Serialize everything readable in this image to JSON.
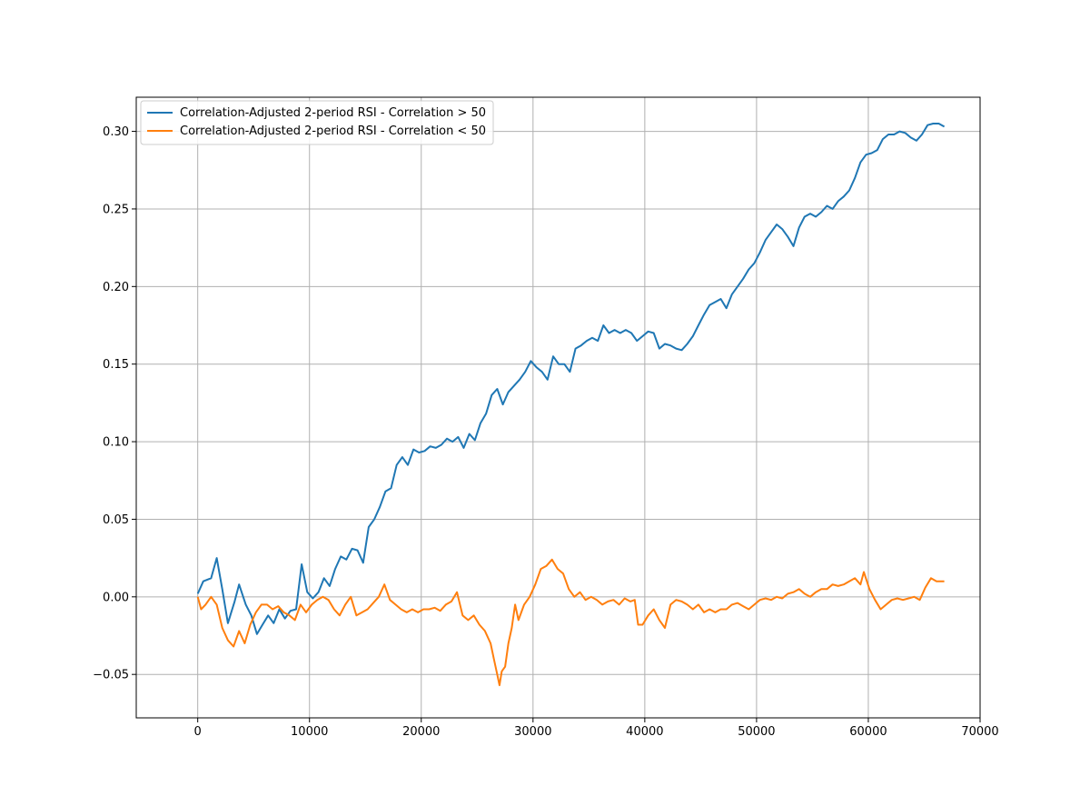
{
  "chart_data": {
    "type": "line",
    "title": "",
    "xlabel": "",
    "ylabel": "",
    "xlim": [
      -5500,
      70000
    ],
    "ylim": [
      -0.078,
      0.322
    ],
    "xticks": [
      0,
      10000,
      20000,
      30000,
      40000,
      50000,
      60000,
      70000
    ],
    "xtick_labels": [
      "0",
      "10000",
      "20000",
      "30000",
      "40000",
      "50000",
      "60000",
      "70000"
    ],
    "yticks": [
      -0.05,
      0.0,
      0.05,
      0.1,
      0.15,
      0.2,
      0.25,
      0.3
    ],
    "ytick_labels": [
      "−0.05",
      "0.00",
      "0.05",
      "0.10",
      "0.15",
      "0.20",
      "0.25",
      "0.30"
    ],
    "grid": true,
    "legend_position": "upper-left",
    "series": [
      {
        "name": "Correlation-Adjusted 2-period RSI - Correlation > 50",
        "color": "#1f77b4",
        "x": [
          0,
          500,
          1200,
          1700,
          2200,
          2700,
          3300,
          3700,
          4300,
          4800,
          5300,
          5800,
          6300,
          6800,
          7300,
          7800,
          8300,
          8800,
          9300,
          9800,
          10300,
          10800,
          11300,
          11800,
          12300,
          12800,
          13300,
          13800,
          14300,
          14800,
          15300,
          15800,
          16300,
          16800,
          17300,
          17800,
          18300,
          18800,
          19300,
          19800,
          20300,
          20800,
          21300,
          21800,
          22300,
          22800,
          23300,
          23800,
          24300,
          24800,
          25300,
          25800,
          26300,
          26800,
          27300,
          27800,
          28300,
          28800,
          29300,
          29800,
          30300,
          30800,
          31300,
          31800,
          32300,
          32800,
          33300,
          33800,
          34300,
          34800,
          35300,
          35800,
          36300,
          36800,
          37300,
          37800,
          38300,
          38800,
          39300,
          39800,
          40300,
          40800,
          41300,
          41800,
          42300,
          42800,
          43300,
          43800,
          44300,
          44800,
          45300,
          45800,
          46300,
          46800,
          47300,
          47800,
          48300,
          48800,
          49300,
          49800,
          50300,
          50800,
          51300,
          51800,
          52300,
          52800,
          53300,
          53800,
          54300,
          54800,
          55300,
          55800,
          56300,
          56800,
          57300,
          57800,
          58300,
          58800,
          59300,
          59800,
          60300,
          60800,
          61300,
          61800,
          62300,
          62800,
          63300,
          63800,
          64300,
          64800,
          65300,
          65800,
          66300,
          66800
        ],
        "y": [
          0.002,
          0.01,
          0.012,
          0.025,
          0.005,
          -0.017,
          -0.003,
          0.008,
          -0.005,
          -0.012,
          -0.024,
          -0.018,
          -0.012,
          -0.017,
          -0.008,
          -0.014,
          -0.009,
          -0.008,
          0.021,
          0.003,
          -0.001,
          0.003,
          0.012,
          0.007,
          0.018,
          0.026,
          0.024,
          0.031,
          0.03,
          0.022,
          0.045,
          0.05,
          0.058,
          0.068,
          0.07,
          0.085,
          0.09,
          0.085,
          0.095,
          0.093,
          0.094,
          0.097,
          0.096,
          0.098,
          0.102,
          0.1,
          0.103,
          0.096,
          0.105,
          0.101,
          0.112,
          0.118,
          0.13,
          0.134,
          0.124,
          0.132,
          0.136,
          0.14,
          0.145,
          0.152,
          0.148,
          0.145,
          0.14,
          0.155,
          0.15,
          0.15,
          0.145,
          0.16,
          0.162,
          0.165,
          0.167,
          0.165,
          0.175,
          0.17,
          0.172,
          0.17,
          0.172,
          0.17,
          0.165,
          0.168,
          0.171,
          0.17,
          0.16,
          0.163,
          0.162,
          0.16,
          0.159,
          0.163,
          0.168,
          0.175,
          0.182,
          0.188,
          0.19,
          0.192,
          0.186,
          0.195,
          0.2,
          0.205,
          0.211,
          0.215,
          0.222,
          0.23,
          0.235,
          0.24,
          0.237,
          0.232,
          0.226,
          0.238,
          0.245,
          0.247,
          0.245,
          0.248,
          0.252,
          0.25,
          0.255,
          0.258,
          0.262,
          0.27,
          0.28,
          0.285,
          0.286,
          0.288,
          0.295,
          0.298,
          0.298,
          0.3,
          0.299,
          0.296,
          0.294,
          0.298,
          0.304,
          0.305,
          0.305,
          0.303
        ]
      },
      {
        "name": "Correlation-Adjusted 2-period RSI - Correlation < 50",
        "color": "#ff7f0e",
        "x": [
          0,
          300,
          700,
          1200,
          1700,
          2200,
          2700,
          3200,
          3700,
          4200,
          4700,
          5200,
          5700,
          6200,
          6700,
          7200,
          7700,
          8200,
          8700,
          9200,
          9700,
          10200,
          10700,
          11200,
          11700,
          12200,
          12700,
          13200,
          13700,
          14200,
          14700,
          15200,
          15700,
          16200,
          16700,
          17200,
          17700,
          18200,
          18700,
          19200,
          19700,
          20200,
          20700,
          21200,
          21700,
          22200,
          22700,
          23200,
          23700,
          24200,
          24700,
          25200,
          25700,
          26200,
          26500,
          26800,
          27000,
          27200,
          27500,
          27800,
          28100,
          28400,
          28700,
          29200,
          29700,
          30200,
          30700,
          31200,
          31700,
          32200,
          32700,
          33200,
          33700,
          34200,
          34700,
          35200,
          35700,
          36200,
          36700,
          37200,
          37700,
          38200,
          38700,
          39100,
          39400,
          39800,
          40300,
          40800,
          41300,
          41800,
          42300,
          42800,
          43300,
          43800,
          44300,
          44800,
          45300,
          45800,
          46300,
          46800,
          47300,
          47800,
          48300,
          48800,
          49300,
          49800,
          50300,
          50800,
          51300,
          51800,
          52300,
          52800,
          53300,
          53800,
          54300,
          54800,
          55300,
          55800,
          56300,
          56800,
          57300,
          57800,
          58300,
          58800,
          59300,
          59600,
          60100,
          60600,
          61100,
          61600,
          62100,
          62600,
          63100,
          63600,
          64100,
          64600,
          65100,
          65600,
          66100,
          66800
        ],
        "y": [
          0.0,
          -0.008,
          -0.005,
          0.0,
          -0.005,
          -0.02,
          -0.028,
          -0.032,
          -0.022,
          -0.03,
          -0.018,
          -0.01,
          -0.005,
          -0.005,
          -0.008,
          -0.006,
          -0.01,
          -0.012,
          -0.015,
          -0.005,
          -0.01,
          -0.005,
          -0.002,
          0.0,
          -0.002,
          -0.008,
          -0.012,
          -0.005,
          0.0,
          -0.012,
          -0.01,
          -0.008,
          -0.004,
          0.0,
          0.008,
          -0.002,
          -0.005,
          -0.008,
          -0.01,
          -0.008,
          -0.01,
          -0.008,
          -0.008,
          -0.007,
          -0.009,
          -0.005,
          -0.003,
          0.003,
          -0.012,
          -0.015,
          -0.012,
          -0.018,
          -0.022,
          -0.03,
          -0.04,
          -0.05,
          -0.057,
          -0.048,
          -0.045,
          -0.03,
          -0.02,
          -0.005,
          -0.015,
          -0.005,
          0.0,
          0.008,
          0.018,
          0.02,
          0.024,
          0.018,
          0.015,
          0.005,
          0.0,
          0.003,
          -0.002,
          0.0,
          -0.002,
          -0.005,
          -0.003,
          -0.002,
          -0.005,
          -0.001,
          -0.003,
          -0.002,
          -0.018,
          -0.018,
          -0.012,
          -0.008,
          -0.015,
          -0.02,
          -0.005,
          -0.002,
          -0.003,
          -0.005,
          -0.008,
          -0.005,
          -0.01,
          -0.008,
          -0.01,
          -0.008,
          -0.008,
          -0.005,
          -0.004,
          -0.006,
          -0.008,
          -0.005,
          -0.002,
          -0.001,
          -0.002,
          0.0,
          -0.001,
          0.002,
          0.003,
          0.005,
          0.002,
          0.0,
          0.003,
          0.005,
          0.005,
          0.008,
          0.007,
          0.008,
          0.01,
          0.012,
          0.008,
          0.016,
          0.005,
          -0.002,
          -0.008,
          -0.005,
          -0.002,
          -0.001,
          -0.002,
          -0.001,
          0.0,
          -0.002,
          0.006,
          0.012,
          0.01,
          0.01
        ]
      }
    ]
  }
}
